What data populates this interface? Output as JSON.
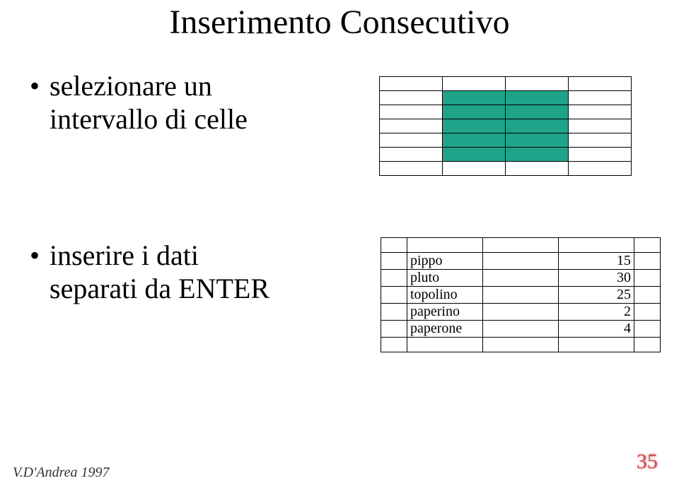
{
  "title": "Inserimento Consecutivo",
  "bullets": {
    "b1_line1": "selezionare un",
    "b1_line2": "intervallo di celle",
    "b2_line1": "inserire i dati",
    "b2_line2": "separati da ENTER"
  },
  "grid1": {
    "rows": 7,
    "cols": 4,
    "colors": {
      "selected": "#1fa48a",
      "normal": "#ffffff",
      "border": "#000000"
    },
    "selected_cells": [
      [
        1,
        1
      ],
      [
        1,
        2
      ],
      [
        2,
        1
      ],
      [
        2,
        2
      ],
      [
        3,
        1
      ],
      [
        3,
        2
      ],
      [
        4,
        1
      ],
      [
        4,
        2
      ],
      [
        5,
        1
      ],
      [
        5,
        2
      ]
    ]
  },
  "grid2": {
    "colors": {
      "background": "#ffffff",
      "border": "#000000"
    },
    "rows": [
      {
        "c2": "",
        "c4": ""
      },
      {
        "c2": "pippo",
        "c4": "15"
      },
      {
        "c2": "pluto",
        "c4": "30"
      },
      {
        "c2": "topolino",
        "c4": "25"
      },
      {
        "c2": "paperino",
        "c4": "2"
      },
      {
        "c2": "paperone",
        "c4": "4"
      },
      {
        "c2": "",
        "c4": ""
      }
    ]
  },
  "footer": "V.D'Andrea 1997",
  "page_number": "35"
}
